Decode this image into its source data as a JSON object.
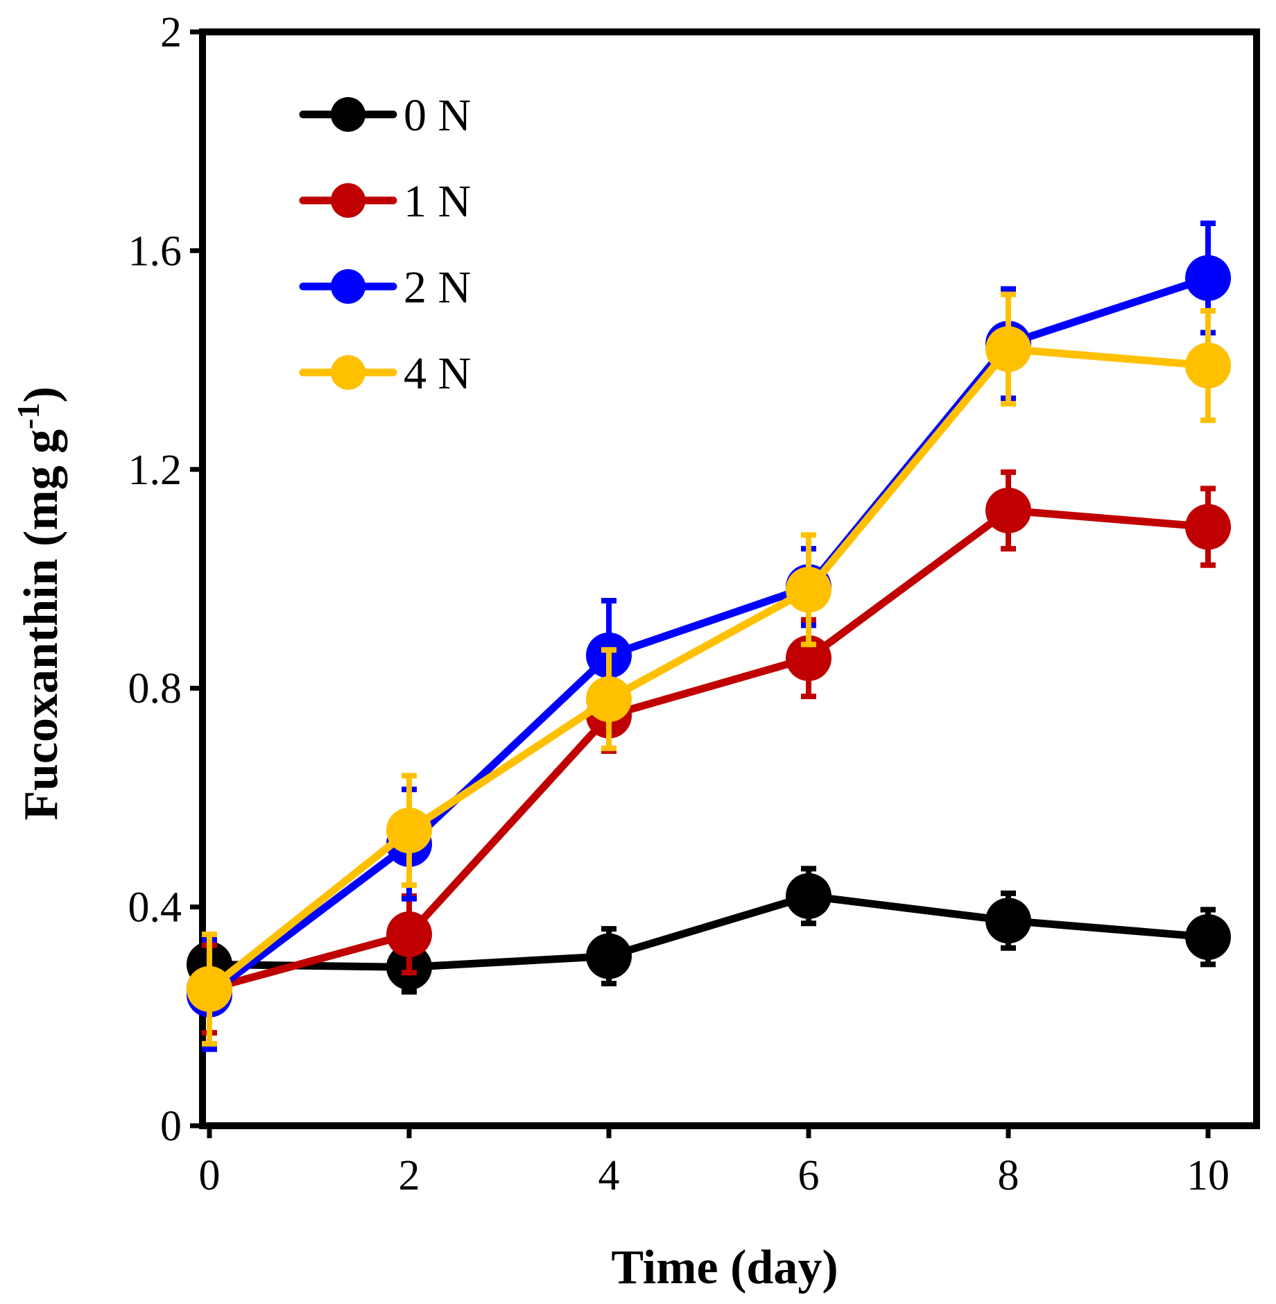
{
  "chart_data": {
    "type": "line",
    "title": "",
    "xlabel": "Time (day)",
    "ylabel_main": "Fucoxanthin (mg g",
    "ylabel_sup": "-1",
    "ylabel_close": ")",
    "xlim": [
      0,
      10
    ],
    "ylim": [
      0,
      2
    ],
    "x_ticks": [
      0,
      2,
      4,
      6,
      8,
      10
    ],
    "x_tick_labels": [
      "0",
      "2",
      "4",
      "6",
      "8",
      "10"
    ],
    "y_ticks": [
      0,
      0.4,
      0.8,
      1.2,
      1.6,
      2
    ],
    "y_tick_labels": [
      "0",
      "0.4",
      "0.8",
      "1.2",
      "1.6",
      "2"
    ],
    "grid": false,
    "legend_position": "top-left",
    "series": [
      {
        "name": "0 N",
        "color": "#000000",
        "x": [
          0,
          2,
          4,
          6,
          8,
          10
        ],
        "values": [
          0.295,
          0.29,
          0.31,
          0.42,
          0.375,
          0.345
        ],
        "errors": [
          0.035,
          0.045,
          0.05,
          0.05,
          0.05,
          0.05
        ]
      },
      {
        "name": "1 N",
        "color": "#C00000",
        "x": [
          0,
          2,
          4,
          6,
          8,
          10
        ],
        "values": [
          0.25,
          0.35,
          0.75,
          0.855,
          1.125,
          1.095
        ],
        "errors": [
          0.08,
          0.07,
          0.065,
          0.07,
          0.07,
          0.07
        ]
      },
      {
        "name": "2 N",
        "color": "#0000FF",
        "x": [
          0,
          2,
          4,
          6,
          8,
          10
        ],
        "values": [
          0.24,
          0.515,
          0.86,
          0.985,
          1.43,
          1.55
        ],
        "errors": [
          0.1,
          0.1,
          0.1,
          0.07,
          0.1,
          0.1
        ]
      },
      {
        "name": "4 N",
        "color": "#FFC000",
        "x": [
          0,
          2,
          4,
          6,
          8,
          10
        ],
        "values": [
          0.25,
          0.54,
          0.78,
          0.98,
          1.42,
          1.39
        ],
        "errors": [
          0.1,
          0.1,
          0.09,
          0.1,
          0.1,
          0.1
        ]
      }
    ]
  }
}
